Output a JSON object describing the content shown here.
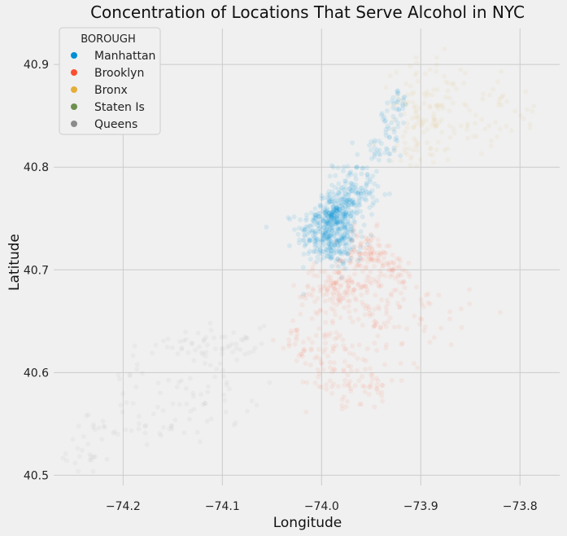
{
  "chart_data": {
    "type": "scatter",
    "title": "Concentration of Locations That Serve Alcohol in NYC",
    "xlabel": "Longitude",
    "ylabel": "Latitude",
    "xlim": [
      -74.27,
      -73.76
    ],
    "ylim": [
      40.49,
      40.935
    ],
    "xticks": [
      -74.2,
      -74.1,
      -74.0,
      -73.9,
      -73.8
    ],
    "xtick_labels": [
      "−74.2",
      "−74.1",
      "−74.0",
      "−73.9",
      "−73.8"
    ],
    "yticks": [
      40.5,
      40.6,
      40.7,
      40.8,
      40.9
    ],
    "ytick_labels": [
      "40.5",
      "40.6",
      "40.7",
      "40.8",
      "40.9"
    ],
    "grid": true,
    "legend": {
      "title": "BOROUGH",
      "placement": "top-left",
      "entries": [
        "Manhattan",
        "Brooklyn",
        "Bronx",
        "Staten Is",
        "Queens"
      ]
    },
    "series": [
      {
        "name": "Manhattan",
        "color": "#008fd5",
        "alpha": 0.1,
        "clusters": [
          {
            "lon": -73.995,
            "lat": 40.735,
            "slon": 0.015,
            "slat": 0.014,
            "n": 260
          },
          {
            "lon": -73.985,
            "lat": 40.755,
            "slon": 0.01,
            "slat": 0.01,
            "n": 220
          },
          {
            "lon": -73.98,
            "lat": 40.72,
            "slon": 0.01,
            "slat": 0.01,
            "n": 70
          },
          {
            "lon": -73.96,
            "lat": 40.775,
            "slon": 0.008,
            "slat": 0.012,
            "n": 70
          },
          {
            "lon": -73.975,
            "lat": 40.785,
            "slon": 0.007,
            "slat": 0.01,
            "n": 40
          },
          {
            "lon": -73.945,
            "lat": 40.81,
            "slon": 0.01,
            "slat": 0.012,
            "n": 35
          },
          {
            "lon": -73.93,
            "lat": 40.845,
            "slon": 0.009,
            "slat": 0.012,
            "n": 30
          },
          {
            "lon": -73.92,
            "lat": 40.865,
            "slon": 0.006,
            "slat": 0.005,
            "n": 15
          }
        ]
      },
      {
        "name": "Brooklyn",
        "color": "#fc4f30",
        "alpha": 0.07,
        "clusters": [
          {
            "lon": -73.955,
            "lat": 40.715,
            "slon": 0.012,
            "slat": 0.012,
            "n": 90
          },
          {
            "lon": -73.985,
            "lat": 40.685,
            "slon": 0.015,
            "slat": 0.012,
            "n": 90
          },
          {
            "lon": -73.95,
            "lat": 40.68,
            "slon": 0.025,
            "slat": 0.02,
            "n": 90
          },
          {
            "lon": -73.925,
            "lat": 40.7,
            "slon": 0.01,
            "slat": 0.008,
            "n": 25
          },
          {
            "lon": -74.0,
            "lat": 40.635,
            "slon": 0.02,
            "slat": 0.02,
            "n": 55
          },
          {
            "lon": -74.025,
            "lat": 40.625,
            "slon": 0.005,
            "slat": 0.01,
            "n": 15
          },
          {
            "lon": -73.96,
            "lat": 40.62,
            "slon": 0.025,
            "slat": 0.025,
            "n": 60
          },
          {
            "lon": -73.985,
            "lat": 40.59,
            "slon": 0.015,
            "slat": 0.012,
            "n": 25
          },
          {
            "lon": -73.95,
            "lat": 40.585,
            "slon": 0.012,
            "slat": 0.008,
            "n": 20
          },
          {
            "lon": -73.9,
            "lat": 40.65,
            "slon": 0.025,
            "slat": 0.02,
            "n": 35
          }
        ]
      },
      {
        "name": "Bronx",
        "color": "#e5ae38",
        "alpha": 0.06,
        "clusters": [
          {
            "lon": -73.9,
            "lat": 40.86,
            "slon": 0.015,
            "slat": 0.018,
            "n": 60
          },
          {
            "lon": -73.87,
            "lat": 40.84,
            "slon": 0.025,
            "slat": 0.015,
            "n": 45
          },
          {
            "lon": -73.91,
            "lat": 40.82,
            "slon": 0.01,
            "slat": 0.012,
            "n": 25
          },
          {
            "lon": -73.88,
            "lat": 40.885,
            "slon": 0.02,
            "slat": 0.012,
            "n": 20
          },
          {
            "lon": -73.83,
            "lat": 40.86,
            "slon": 0.02,
            "slat": 0.02,
            "n": 25
          },
          {
            "lon": -73.79,
            "lat": 40.845,
            "slon": 0.005,
            "slat": 0.008,
            "n": 6
          }
        ]
      },
      {
        "name": "Staten Is",
        "color": "#6d904f",
        "alpha": 0.06,
        "clusters": []
      },
      {
        "name": "Queens",
        "color": "#8b8b8b",
        "alpha": 0.06,
        "clusters": [
          {
            "lon": -74.09,
            "lat": 40.63,
            "slon": 0.02,
            "slat": 0.012,
            "n": 35
          },
          {
            "lon": -74.14,
            "lat": 40.625,
            "slon": 0.02,
            "slat": 0.01,
            "n": 25
          },
          {
            "lon": -74.11,
            "lat": 40.585,
            "slon": 0.025,
            "slat": 0.015,
            "n": 35
          },
          {
            "lon": -74.16,
            "lat": 40.55,
            "slon": 0.025,
            "slat": 0.015,
            "n": 30
          },
          {
            "lon": -74.22,
            "lat": 40.54,
            "slon": 0.02,
            "slat": 0.012,
            "n": 20
          },
          {
            "lon": -74.24,
            "lat": 40.515,
            "slon": 0.012,
            "slat": 0.008,
            "n": 15
          },
          {
            "lon": -74.185,
            "lat": 40.6,
            "slon": 0.015,
            "slat": 0.012,
            "n": 12
          }
        ]
      }
    ]
  }
}
